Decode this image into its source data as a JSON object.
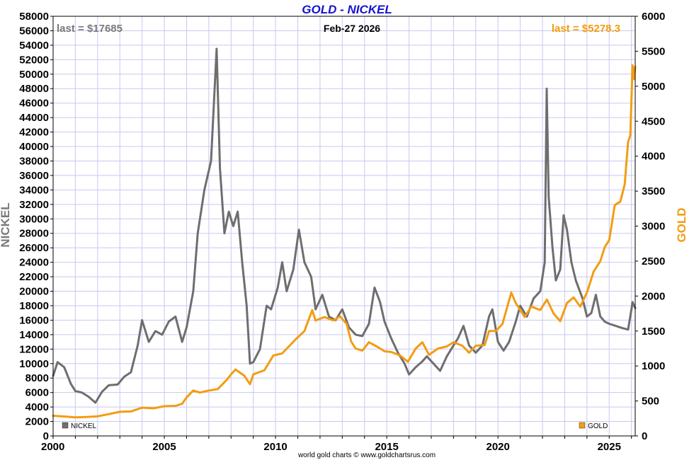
{
  "chart_data": {
    "type": "line",
    "title": "GOLD - NICKEL",
    "date_label": "Feb-27  2026",
    "last_left": "last = $17685",
    "last_right": "last = $5278.3",
    "ylabel_left": "NICKEL",
    "ylabel_right": "GOLD",
    "footer": "world gold charts © www.goldchartsrus.com",
    "grid": true,
    "xlim": [
      2000,
      2026.17
    ],
    "x_ticks": [
      2000,
      2005,
      2010,
      2015,
      2020,
      2025
    ],
    "x_tick_labels": [
      "2000",
      "2005",
      "2010",
      "2015",
      "2020",
      "2025"
    ],
    "ylim_left": [
      0,
      58000
    ],
    "y_ticks_left": [
      0,
      2000,
      4000,
      6000,
      8000,
      10000,
      12000,
      14000,
      16000,
      18000,
      20000,
      22000,
      24000,
      26000,
      28000,
      30000,
      32000,
      34000,
      36000,
      38000,
      40000,
      42000,
      44000,
      46000,
      48000,
      50000,
      52000,
      54000,
      56000,
      58000
    ],
    "y_tick_labels_left": [
      "0",
      "2000",
      "4000",
      "6000",
      "8000",
      "10000",
      "12000",
      "14000",
      "16000",
      "18000",
      "20000",
      "22000",
      "24000",
      "26000",
      "28000",
      "30000",
      "32000",
      "34000",
      "36000",
      "38000",
      "40000",
      "42000",
      "44000",
      "46000",
      "48000",
      "50000",
      "52000",
      "54000",
      "56000",
      "58000"
    ],
    "ylim_right": [
      0,
      6000
    ],
    "y_ticks_right": [
      0,
      500,
      1000,
      1500,
      2000,
      2500,
      3000,
      3500,
      4000,
      4500,
      5000,
      5500,
      6000
    ],
    "y_tick_labels_right": [
      "0",
      "500",
      "1000",
      "1500",
      "2000",
      "2500",
      "3000",
      "3500",
      "4000",
      "4500",
      "5000",
      "5500",
      "6000"
    ],
    "legend": [
      {
        "name": "NICKEL",
        "color": "#6e6e6e",
        "placement": "bottom-left"
      },
      {
        "name": "GOLD",
        "color": "#f39c12",
        "placement": "bottom-right"
      }
    ],
    "series": [
      {
        "name": "NICKEL",
        "axis": "left",
        "color": "#6e6e6e",
        "points": [
          [
            2000.0,
            8300
          ],
          [
            2000.2,
            10200
          ],
          [
            2000.5,
            9500
          ],
          [
            2000.8,
            7200
          ],
          [
            2001.0,
            6200
          ],
          [
            2001.3,
            6000
          ],
          [
            2001.6,
            5400
          ],
          [
            2001.9,
            4600
          ],
          [
            2002.2,
            6100
          ],
          [
            2002.5,
            7000
          ],
          [
            2002.9,
            7100
          ],
          [
            2003.2,
            8200
          ],
          [
            2003.5,
            8800
          ],
          [
            2003.8,
            12500
          ],
          [
            2004.0,
            16000
          ],
          [
            2004.3,
            13000
          ],
          [
            2004.6,
            14500
          ],
          [
            2004.9,
            14000
          ],
          [
            2005.2,
            15800
          ],
          [
            2005.5,
            16500
          ],
          [
            2005.8,
            13000
          ],
          [
            2006.0,
            15000
          ],
          [
            2006.3,
            20000
          ],
          [
            2006.5,
            28000
          ],
          [
            2006.8,
            34000
          ],
          [
            2007.1,
            38000
          ],
          [
            2007.35,
            53500
          ],
          [
            2007.5,
            37000
          ],
          [
            2007.7,
            28000
          ],
          [
            2007.9,
            31000
          ],
          [
            2008.1,
            29000
          ],
          [
            2008.3,
            31000
          ],
          [
            2008.5,
            24000
          ],
          [
            2008.7,
            18000
          ],
          [
            2008.85,
            10000
          ],
          [
            2009.0,
            10200
          ],
          [
            2009.3,
            12000
          ],
          [
            2009.6,
            18000
          ],
          [
            2009.8,
            17500
          ],
          [
            2010.1,
            20500
          ],
          [
            2010.3,
            24000
          ],
          [
            2010.5,
            20000
          ],
          [
            2010.8,
            23000
          ],
          [
            2011.05,
            28500
          ],
          [
            2011.3,
            24000
          ],
          [
            2011.6,
            22000
          ],
          [
            2011.8,
            17500
          ],
          [
            2012.1,
            19500
          ],
          [
            2012.4,
            16500
          ],
          [
            2012.7,
            16000
          ],
          [
            2013.0,
            17500
          ],
          [
            2013.3,
            15000
          ],
          [
            2013.6,
            14000
          ],
          [
            2013.9,
            13800
          ],
          [
            2014.2,
            15500
          ],
          [
            2014.45,
            20500
          ],
          [
            2014.7,
            18500
          ],
          [
            2014.9,
            15800
          ],
          [
            2015.2,
            13500
          ],
          [
            2015.5,
            11500
          ],
          [
            2015.8,
            10000
          ],
          [
            2016.0,
            8500
          ],
          [
            2016.3,
            9500
          ],
          [
            2016.6,
            10300
          ],
          [
            2016.8,
            11000
          ],
          [
            2017.1,
            10000
          ],
          [
            2017.4,
            9000
          ],
          [
            2017.7,
            11000
          ],
          [
            2017.9,
            12000
          ],
          [
            2018.2,
            13500
          ],
          [
            2018.45,
            15200
          ],
          [
            2018.7,
            12500
          ],
          [
            2019.0,
            11500
          ],
          [
            2019.3,
            12500
          ],
          [
            2019.6,
            16500
          ],
          [
            2019.75,
            17500
          ],
          [
            2020.0,
            13000
          ],
          [
            2020.25,
            11800
          ],
          [
            2020.5,
            13000
          ],
          [
            2020.8,
            15800
          ],
          [
            2021.0,
            18000
          ],
          [
            2021.3,
            16500
          ],
          [
            2021.6,
            19000
          ],
          [
            2021.9,
            20000
          ],
          [
            2022.1,
            24000
          ],
          [
            2022.19,
            48000
          ],
          [
            2022.28,
            33000
          ],
          [
            2022.45,
            26000
          ],
          [
            2022.6,
            21500
          ],
          [
            2022.8,
            23000
          ],
          [
            2022.95,
            30500
          ],
          [
            2023.1,
            28500
          ],
          [
            2023.3,
            24000
          ],
          [
            2023.5,
            21500
          ],
          [
            2023.8,
            19000
          ],
          [
            2024.0,
            16500
          ],
          [
            2024.2,
            17000
          ],
          [
            2024.4,
            19500
          ],
          [
            2024.6,
            16500
          ],
          [
            2024.8,
            15800
          ],
          [
            2025.0,
            15500
          ],
          [
            2025.3,
            15200
          ],
          [
            2025.6,
            14900
          ],
          [
            2025.85,
            14700
          ],
          [
            2026.0,
            17500
          ],
          [
            2026.05,
            18500
          ],
          [
            2026.17,
            17685
          ]
        ]
      },
      {
        "name": "GOLD",
        "axis": "right",
        "color": "#f39c12",
        "points": [
          [
            2000.0,
            288
          ],
          [
            2000.5,
            278
          ],
          [
            2001.0,
            265
          ],
          [
            2001.5,
            270
          ],
          [
            2002.0,
            280
          ],
          [
            2002.5,
            312
          ],
          [
            2003.0,
            345
          ],
          [
            2003.5,
            350
          ],
          [
            2004.0,
            405
          ],
          [
            2004.5,
            395
          ],
          [
            2005.0,
            425
          ],
          [
            2005.5,
            430
          ],
          [
            2005.8,
            460
          ],
          [
            2006.0,
            550
          ],
          [
            2006.3,
            650
          ],
          [
            2006.6,
            620
          ],
          [
            2007.0,
            650
          ],
          [
            2007.4,
            670
          ],
          [
            2007.8,
            800
          ],
          [
            2008.0,
            880
          ],
          [
            2008.2,
            950
          ],
          [
            2008.6,
            860
          ],
          [
            2008.85,
            740
          ],
          [
            2009.0,
            880
          ],
          [
            2009.5,
            940
          ],
          [
            2009.9,
            1150
          ],
          [
            2010.3,
            1180
          ],
          [
            2010.9,
            1380
          ],
          [
            2011.3,
            1500
          ],
          [
            2011.65,
            1800
          ],
          [
            2011.8,
            1650
          ],
          [
            2012.2,
            1700
          ],
          [
            2012.6,
            1650
          ],
          [
            2012.9,
            1710
          ],
          [
            2013.2,
            1600
          ],
          [
            2013.4,
            1350
          ],
          [
            2013.6,
            1250
          ],
          [
            2013.9,
            1220
          ],
          [
            2014.2,
            1340
          ],
          [
            2014.6,
            1270
          ],
          [
            2014.9,
            1210
          ],
          [
            2015.2,
            1200
          ],
          [
            2015.6,
            1150
          ],
          [
            2015.95,
            1060
          ],
          [
            2016.3,
            1250
          ],
          [
            2016.6,
            1340
          ],
          [
            2016.9,
            1160
          ],
          [
            2017.3,
            1250
          ],
          [
            2017.7,
            1280
          ],
          [
            2018.0,
            1340
          ],
          [
            2018.4,
            1290
          ],
          [
            2018.7,
            1190
          ],
          [
            2019.0,
            1290
          ],
          [
            2019.4,
            1300
          ],
          [
            2019.6,
            1500
          ],
          [
            2019.9,
            1500
          ],
          [
            2020.2,
            1600
          ],
          [
            2020.6,
            2050
          ],
          [
            2020.8,
            1900
          ],
          [
            2021.2,
            1700
          ],
          [
            2021.5,
            1850
          ],
          [
            2021.9,
            1800
          ],
          [
            2022.2,
            1950
          ],
          [
            2022.5,
            1750
          ],
          [
            2022.8,
            1640
          ],
          [
            2023.1,
            1900
          ],
          [
            2023.4,
            1980
          ],
          [
            2023.7,
            1850
          ],
          [
            2024.0,
            2050
          ],
          [
            2024.3,
            2350
          ],
          [
            2024.6,
            2500
          ],
          [
            2024.8,
            2700
          ],
          [
            2025.0,
            2800
          ],
          [
            2025.25,
            3300
          ],
          [
            2025.5,
            3350
          ],
          [
            2025.7,
            3600
          ],
          [
            2025.85,
            4200
          ],
          [
            2025.95,
            4300
          ],
          [
            2026.05,
            5300
          ],
          [
            2026.12,
            5100
          ],
          [
            2026.17,
            5278.3
          ]
        ]
      }
    ]
  }
}
